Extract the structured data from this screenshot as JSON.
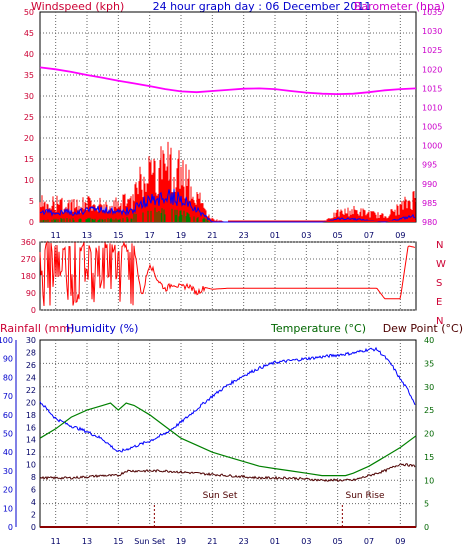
{
  "header": {
    "title": "24 hour graph day : 06 December 2011",
    "wind_label": "Windspeed (kph)",
    "baro_label": "Barometer (hpa)",
    "rain_label": "Rainfall (mm)",
    "hum_label": "Humidity (%)",
    "temp_label": "Temperature (°C)",
    "dew_label": "Dew Point (°C)"
  },
  "annotations": {
    "sunset": "Sun Set",
    "sunrise": "Sun Rise"
  },
  "colors": {
    "wind": "#ff0000",
    "gust": "#0000ff",
    "calm": "#008000",
    "baro": "#ff00ff",
    "dir": "#ff0000",
    "temp": "#008000",
    "dew": "#4d0000",
    "hum": "#0000ff",
    "rain": "#8b0000",
    "axis_red": "#cc0033",
    "axis_mag": "#cc00cc",
    "axis_blue": "#0000cc",
    "axis_green": "#006600"
  },
  "chart_data": [
    {
      "id": "wind-baro",
      "type": "line",
      "xlabels": [
        "11",
        "13",
        "15",
        "17",
        "19",
        "21",
        "23",
        "01",
        "03",
        "05",
        "07",
        "09"
      ],
      "wind_axis": {
        "ticks": [
          "0",
          "5",
          "10",
          "15",
          "20",
          "25",
          "30",
          "35",
          "40",
          "45",
          "50"
        ],
        "range": [
          0,
          50
        ]
      },
      "baro_axis": {
        "ticks": [
          "980",
          "985",
          "990",
          "995",
          "1000",
          "1005",
          "1010",
          "1015",
          "1020",
          "1025",
          "1030",
          "1035"
        ],
        "range": [
          980,
          1035
        ]
      },
      "baro": {
        "x": [
          0,
          1,
          2,
          3,
          4,
          5,
          6,
          7,
          8,
          9,
          10,
          11,
          12,
          13,
          14,
          15,
          16,
          17,
          18,
          19,
          20,
          21,
          22,
          23,
          24
        ],
        "y": [
          1020.5,
          1020,
          1019.3,
          1018.5,
          1017.8,
          1017.0,
          1016.3,
          1015.6,
          1014.8,
          1014.2,
          1014.0,
          1014.3,
          1014.6,
          1014.9,
          1015.0,
          1014.8,
          1014.3,
          1013.9,
          1013.6,
          1013.5,
          1013.6,
          1014.0,
          1014.5,
          1014.8,
          1015.0
        ]
      },
      "wind_profile": {
        "x": [
          0,
          2,
          4,
          5,
          6,
          6.5,
          7,
          8,
          8.5,
          9,
          10,
          10.5,
          11,
          12,
          15,
          18,
          19,
          20,
          22,
          23,
          24
        ],
        "avg_max": [
          7,
          6,
          7,
          6,
          9,
          15,
          17,
          19,
          20,
          18,
          10,
          4,
          1,
          0,
          0,
          0,
          3,
          4,
          2,
          5,
          9
        ],
        "gust_max": [
          3,
          3,
          4,
          3,
          4,
          6,
          7,
          8,
          8,
          7,
          4,
          2,
          0,
          0,
          0,
          0,
          1,
          1,
          0,
          1,
          2
        ],
        "calm_max": [
          1,
          1,
          1,
          1,
          2,
          3,
          4,
          4,
          4,
          3,
          2,
          1,
          0,
          0,
          0,
          0,
          0,
          0,
          0,
          0,
          0
        ]
      }
    },
    {
      "id": "wind-direction",
      "type": "line",
      "axis_ticks": [
        "360",
        "270",
        "180",
        "90",
        "0"
      ],
      "compass_labels": [
        "N",
        "W",
        "S",
        "E",
        "N"
      ],
      "range": [
        0,
        360
      ],
      "x": [
        0,
        0.5,
        1,
        1.5,
        2,
        2.5,
        3,
        3.5,
        4,
        4.5,
        5,
        5.5,
        6,
        6.5,
        7,
        7.5,
        8,
        8.5,
        9,
        9.5,
        10,
        10.5,
        11,
        12,
        14,
        16,
        18,
        20,
        21,
        21.5,
        22,
        23,
        23.5,
        24
      ],
      "y": [
        120,
        280,
        340,
        40,
        350,
        20,
        300,
        200,
        350,
        60,
        340,
        100,
        330,
        70,
        250,
        160,
        110,
        140,
        120,
        130,
        90,
        120,
        110,
        115,
        115,
        115,
        115,
        115,
        115,
        115,
        60,
        60,
        340,
        330
      ]
    },
    {
      "id": "temp-hum",
      "type": "line",
      "hum_axis": {
        "ticks": [
          "0",
          "10",
          "20",
          "30",
          "40",
          "50",
          "60",
          "70",
          "80",
          "90",
          "100"
        ],
        "range": [
          0,
          100
        ]
      },
      "rain_axis": {
        "ticks": [
          "0",
          "2",
          "4",
          "6",
          "8",
          "10",
          "12",
          "14",
          "16",
          "18",
          "20",
          "22",
          "24",
          "26",
          "28",
          "30"
        ],
        "range": [
          0,
          30
        ]
      },
      "temp_axis": {
        "ticks": [
          "0",
          "5",
          "10",
          "15",
          "20",
          "25",
          "30",
          "35",
          "40"
        ],
        "range": [
          0,
          40
        ]
      },
      "xlabels": [
        "11",
        "13",
        "15",
        "Sun Set",
        "19",
        "21",
        "23",
        "01",
        "03",
        "05",
        "07",
        "09"
      ],
      "temperature": {
        "x": [
          0,
          1,
          2,
          3,
          4,
          4.5,
          5,
          5.5,
          6,
          7,
          8,
          9,
          10,
          11,
          12,
          13,
          14,
          15,
          16,
          17,
          18,
          19,
          19.5,
          20,
          21,
          22,
          23,
          24
        ],
        "y": [
          19,
          21,
          23.5,
          25,
          26,
          26.5,
          25,
          26.5,
          26,
          24,
          21.5,
          19,
          17.5,
          16,
          15,
          14,
          13,
          12.5,
          12,
          11.5,
          11,
          11,
          11,
          11.5,
          13,
          15,
          17,
          19.5
        ]
      },
      "dew_point": {
        "x": [
          0,
          2,
          4,
          5,
          5.5,
          6,
          8,
          10,
          12,
          14,
          16,
          18,
          19.5,
          20,
          21,
          22,
          23,
          24
        ],
        "y": [
          10.5,
          10.5,
          11,
          11,
          12,
          12,
          12,
          11.5,
          11,
          10.5,
          10.5,
          10,
          10,
          10,
          11,
          12,
          13.5,
          13
        ]
      },
      "humidity": {
        "x": [
          0,
          1,
          2,
          3,
          4,
          5,
          6,
          7,
          8,
          9,
          10,
          11,
          12,
          13,
          14,
          15,
          16,
          17,
          18,
          19,
          20,
          21,
          21.5,
          22,
          22.5,
          23,
          23.5,
          24
        ],
        "y": [
          67,
          58,
          54,
          51,
          47,
          40,
          43,
          46,
          50,
          56,
          63,
          70,
          76,
          81,
          85,
          88,
          89,
          90,
          91,
          92,
          93,
          95,
          95,
          91,
          86,
          79,
          73,
          65
        ]
      },
      "rainfall": {
        "x": [
          0,
          24
        ],
        "y": [
          0,
          0
        ]
      }
    }
  ]
}
